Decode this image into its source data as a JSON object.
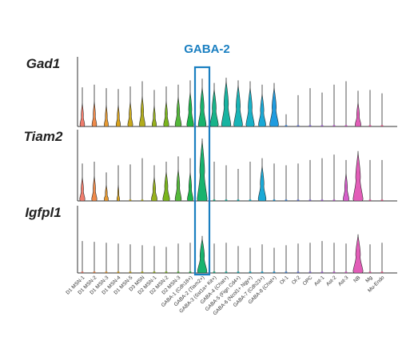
{
  "chart_data": {
    "type": "violin",
    "title": "",
    "highlight": {
      "label": "GABA-2",
      "category_index": 10,
      "color": "#1a7fc1"
    },
    "categories": [
      "D1 MSN-1",
      "D1 MSN-2",
      "D1 MSN-3",
      "D1 MSN-4",
      "D1 MSN-5",
      "D3 MSN",
      "D2 MSN-1",
      "D2 MSN-2",
      "D2 MSN-3",
      "GABA-1 (Cdh18+)",
      "GABA-2 (Tiam2+)",
      "GABA-3 (Sst1a+ Kit+)",
      "GABA-4 (Chat+)",
      "GABA-5 (Fign Cd4+)",
      "GABA-6 (Ncol1+ Ngy+)",
      "GABA-7 (Cdh23+)",
      "GABA-8 (Chat+)",
      "Ol-1",
      "Ol-2",
      "OPC",
      "Ast-1",
      "Ast-2",
      "Ast-3",
      "NB",
      "Mg",
      "Mu-Endo"
    ],
    "colors": [
      "#f07c6c",
      "#ef8a4a",
      "#e89a32",
      "#d9a21b",
      "#c9a91c",
      "#b2ad1c",
      "#97b11c",
      "#7ab51c",
      "#55b83a",
      "#1bb54a",
      "#18b36e",
      "#19b38a",
      "#18b4a1",
      "#18b4b6",
      "#19b1c8",
      "#1aa9d6",
      "#1f9bdf",
      "#468ce0",
      "#6d7fe0",
      "#8f74df",
      "#ab6bdc",
      "#c463d6",
      "#d75ecb",
      "#e25db8",
      "#e95fa6",
      "#ec6392"
    ],
    "genes": [
      {
        "name": "Gad1",
        "max_expression": [
          4.5,
          4.8,
          4.4,
          4.3,
          4.6,
          5.2,
          4.2,
          4.6,
          4.8,
          5.3,
          5.5,
          5.0,
          5.6,
          5.3,
          5.2,
          4.8,
          5.0,
          1.4,
          3.6,
          4.4,
          3.9,
          4.8,
          5.2,
          4.1,
          4.2,
          3.8
        ],
        "violin_width": [
          0.45,
          0.45,
          0.4,
          0.42,
          0.48,
          0.55,
          0.42,
          0.5,
          0.6,
          0.65,
          0.75,
          0.8,
          0.9,
          0.85,
          0.8,
          0.7,
          0.85,
          0.05,
          0.05,
          0.05,
          0.05,
          0.05,
          0.05,
          0.55,
          0.05,
          0.05
        ]
      },
      {
        "name": "Tiam2",
        "max_expression": [
          4.2,
          4.4,
          3.2,
          4.0,
          4.1,
          4.8,
          4.0,
          4.4,
          5.0,
          4.8,
          7.0,
          4.4,
          4.0,
          3.6,
          4.4,
          4.8,
          4.2,
          4.0,
          4.2,
          4.6,
          4.8,
          5.2,
          4.6,
          5.6,
          4.6,
          4.6
        ],
        "violin_width": [
          0.5,
          0.5,
          0.4,
          0.25,
          0.05,
          0.05,
          0.55,
          0.65,
          0.6,
          0.55,
          0.95,
          0.05,
          0.05,
          0.05,
          0.05,
          0.75,
          0.05,
          0.05,
          0.05,
          0.05,
          0.05,
          0.05,
          0.55,
          0.95,
          0.05,
          0.05
        ]
      },
      {
        "name": "Igfpl1",
        "max_expression": [
          3.8,
          3.7,
          3.6,
          3.5,
          3.4,
          3.3,
          3.2,
          3.1,
          3.5,
          3.6,
          4.4,
          3.5,
          3.6,
          3.2,
          3.0,
          3.4,
          3.0,
          3.3,
          3.5,
          3.6,
          3.8,
          3.6,
          3.5,
          4.6,
          3.4,
          3.6
        ],
        "violin_width": [
          0.05,
          0.05,
          0.05,
          0.05,
          0.05,
          0.05,
          0.05,
          0.05,
          0.05,
          0.05,
          0.9,
          0.05,
          0.05,
          0.05,
          0.05,
          0.05,
          0.05,
          0.05,
          0.05,
          0.05,
          0.05,
          0.05,
          0.05,
          0.95,
          0.05,
          0.05
        ]
      }
    ]
  }
}
